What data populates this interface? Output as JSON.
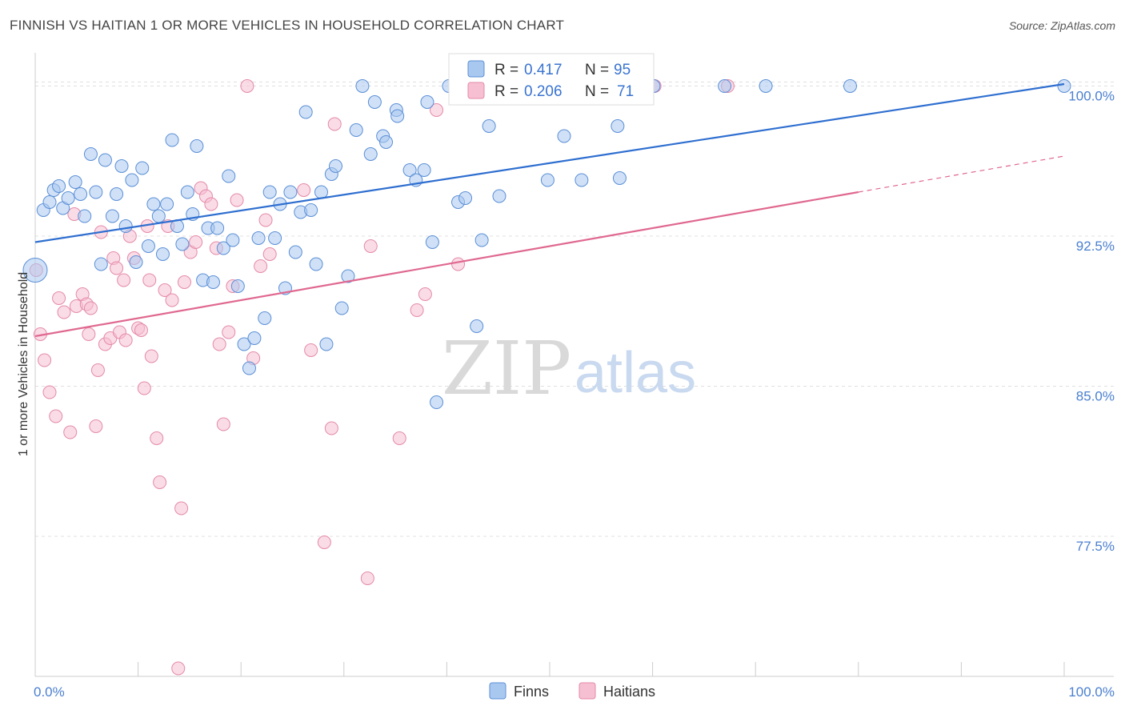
{
  "title": "FINNISH VS HAITIAN 1 OR MORE VEHICLES IN HOUSEHOLD CORRELATION CHART",
  "source": "Source: ZipAtlas.com",
  "watermark": {
    "zip": "ZIP",
    "atlas": "atlas"
  },
  "colors": {
    "finns_fill": "#a9c8f0",
    "finns_stroke": "#5b8fd6",
    "finns_line": "#2f6fd0",
    "haitians_fill": "#f6bfd2",
    "haitians_stroke": "#e48aa9",
    "haitians_line": "#e0688f",
    "grid": "#e0e0e0",
    "axis_label": "#4a7fd0"
  },
  "legend": {
    "rows": [
      {
        "r_label": "R =",
        "r_value": "0.417",
        "n_label": "N =",
        "n_value": "95"
      },
      {
        "r_label": "R =",
        "r_value": "0.206",
        "n_label": "N =",
        "n_value": "71"
      }
    ]
  },
  "chart_data": {
    "type": "scatter",
    "title": "FINNISH VS HAITIAN 1 OR MORE VEHICLES IN HOUSEHOLD CORRELATION CHART",
    "xlabel": "",
    "ylabel": "1 or more Vehicles in Household",
    "xlim": [
      0,
      100
    ],
    "ylim": [
      70.5,
      101.5
    ],
    "x_tick_labels": [
      "0.0%",
      "100.0%"
    ],
    "y_ticks": [
      77.5,
      85.0,
      92.5,
      100.0
    ],
    "y_tick_labels": [
      "77.5%",
      "85.0%",
      "92.5%",
      "100.0%"
    ],
    "grid": true,
    "legend_placement": "bottom",
    "series": [
      {
        "name": "Finns",
        "r": 0.417,
        "n": 95,
        "trend": {
          "x": [
            0,
            100
          ],
          "y": [
            92.2,
            100.1
          ]
        },
        "points": [
          [
            0,
            90.8
          ],
          [
            0.8,
            93.8
          ],
          [
            1.4,
            94.2
          ],
          [
            1.8,
            94.8
          ],
          [
            2.3,
            95.0
          ],
          [
            2.7,
            93.9
          ],
          [
            3.2,
            94.4
          ],
          [
            3.9,
            95.2
          ],
          [
            4.4,
            94.6
          ],
          [
            4.8,
            93.5
          ],
          [
            5.4,
            96.6
          ],
          [
            5.9,
            94.7
          ],
          [
            6.4,
            91.1
          ],
          [
            6.8,
            96.3
          ],
          [
            7.5,
            93.5
          ],
          [
            7.9,
            94.6
          ],
          [
            8.4,
            96.0
          ],
          [
            8.8,
            93.0
          ],
          [
            9.4,
            95.3
          ],
          [
            9.8,
            91.2
          ],
          [
            10.4,
            95.9
          ],
          [
            11.0,
            92.0
          ],
          [
            11.5,
            94.1
          ],
          [
            12.0,
            93.5
          ],
          [
            12.4,
            91.6
          ],
          [
            12.8,
            94.1
          ],
          [
            13.3,
            97.3
          ],
          [
            13.8,
            93.0
          ],
          [
            14.3,
            92.1
          ],
          [
            14.8,
            94.7
          ],
          [
            15.3,
            93.6
          ],
          [
            15.7,
            97.0
          ],
          [
            16.3,
            90.3
          ],
          [
            16.8,
            92.9
          ],
          [
            17.3,
            90.2
          ],
          [
            17.7,
            92.9
          ],
          [
            18.3,
            91.9
          ],
          [
            18.8,
            95.5
          ],
          [
            19.2,
            92.3
          ],
          [
            19.7,
            90.0
          ],
          [
            20.3,
            87.1
          ],
          [
            20.8,
            85.9
          ],
          [
            21.3,
            87.4
          ],
          [
            21.7,
            92.4
          ],
          [
            22.3,
            88.4
          ],
          [
            22.8,
            94.7
          ],
          [
            23.3,
            92.4
          ],
          [
            23.8,
            94.1
          ],
          [
            24.3,
            89.9
          ],
          [
            24.8,
            94.7
          ],
          [
            25.3,
            91.7
          ],
          [
            25.8,
            93.7
          ],
          [
            26.3,
            98.7
          ],
          [
            26.8,
            93.8
          ],
          [
            27.3,
            91.1
          ],
          [
            27.8,
            94.7
          ],
          [
            28.3,
            87.1
          ],
          [
            28.8,
            95.6
          ],
          [
            29.2,
            96.0
          ],
          [
            29.8,
            88.9
          ],
          [
            30.4,
            90.5
          ],
          [
            31.2,
            97.8
          ],
          [
            31.8,
            100.0
          ],
          [
            32.6,
            96.6
          ],
          [
            33.0,
            99.2
          ],
          [
            33.8,
            97.5
          ],
          [
            34.1,
            97.2
          ],
          [
            35.1,
            98.8
          ],
          [
            35.2,
            98.5
          ],
          [
            36.4,
            95.8
          ],
          [
            37.0,
            95.3
          ],
          [
            37.8,
            95.8
          ],
          [
            38.1,
            99.2
          ],
          [
            38.6,
            92.2
          ],
          [
            39.0,
            84.2
          ],
          [
            40.2,
            100.0
          ],
          [
            41.1,
            94.2
          ],
          [
            41.8,
            94.4
          ],
          [
            42.6,
            99.6
          ],
          [
            42.9,
            88.0
          ],
          [
            43.4,
            92.3
          ],
          [
            44.1,
            98.0
          ],
          [
            45.1,
            94.5
          ],
          [
            46.5,
            100.0
          ],
          [
            48.0,
            100.0
          ],
          [
            49.8,
            95.3
          ],
          [
            51.4,
            97.5
          ],
          [
            53.1,
            95.3
          ],
          [
            54.0,
            100.0
          ],
          [
            56.6,
            98.0
          ],
          [
            56.8,
            95.4
          ],
          [
            60.1,
            100.0
          ],
          [
            67.0,
            100.0
          ],
          [
            71.0,
            100.0
          ],
          [
            79.2,
            100.0
          ],
          [
            100.0,
            100.0
          ]
        ]
      },
      {
        "name": "Haitians",
        "r": 0.206,
        "n": 71,
        "trend": {
          "x": [
            0,
            80
          ],
          "y": [
            87.5,
            94.7
          ]
        },
        "trend_extension": {
          "x": [
            80,
            100
          ],
          "y": [
            94.7,
            96.5
          ]
        },
        "points": [
          [
            0.1,
            90.8
          ],
          [
            0.5,
            87.6
          ],
          [
            0.9,
            86.3
          ],
          [
            1.4,
            84.7
          ],
          [
            2.0,
            83.5
          ],
          [
            2.3,
            89.4
          ],
          [
            2.8,
            88.7
          ],
          [
            3.4,
            82.7
          ],
          [
            3.8,
            93.6
          ],
          [
            4.0,
            89.0
          ],
          [
            4.6,
            89.6
          ],
          [
            5.0,
            89.1
          ],
          [
            5.2,
            87.6
          ],
          [
            5.4,
            88.9
          ],
          [
            5.9,
            83.0
          ],
          [
            6.1,
            85.8
          ],
          [
            6.4,
            92.7
          ],
          [
            6.8,
            87.1
          ],
          [
            7.3,
            87.4
          ],
          [
            7.6,
            91.4
          ],
          [
            7.9,
            90.9
          ],
          [
            8.2,
            87.7
          ],
          [
            8.6,
            90.3
          ],
          [
            8.8,
            87.3
          ],
          [
            9.2,
            92.5
          ],
          [
            9.6,
            91.4
          ],
          [
            10.0,
            87.9
          ],
          [
            10.3,
            87.8
          ],
          [
            10.6,
            84.9
          ],
          [
            10.9,
            93.0
          ],
          [
            11.1,
            90.3
          ],
          [
            11.3,
            86.5
          ],
          [
            11.8,
            82.4
          ],
          [
            12.1,
            80.2
          ],
          [
            12.6,
            89.8
          ],
          [
            12.9,
            93.0
          ],
          [
            13.3,
            89.3
          ],
          [
            13.9,
            70.9
          ],
          [
            14.2,
            78.9
          ],
          [
            14.5,
            90.2
          ],
          [
            15.1,
            91.7
          ],
          [
            15.6,
            92.2
          ],
          [
            16.1,
            94.9
          ],
          [
            16.6,
            94.5
          ],
          [
            17.1,
            94.1
          ],
          [
            17.6,
            91.9
          ],
          [
            17.9,
            87.1
          ],
          [
            18.3,
            83.1
          ],
          [
            18.8,
            87.7
          ],
          [
            19.2,
            90.0
          ],
          [
            19.6,
            94.3
          ],
          [
            20.6,
            100.0
          ],
          [
            21.2,
            86.4
          ],
          [
            21.9,
            91.0
          ],
          [
            22.4,
            93.3
          ],
          [
            22.8,
            91.6
          ],
          [
            26.1,
            94.8
          ],
          [
            26.8,
            86.8
          ],
          [
            28.1,
            77.2
          ],
          [
            28.8,
            82.9
          ],
          [
            29.1,
            98.1
          ],
          [
            32.3,
            75.4
          ],
          [
            32.6,
            92.0
          ],
          [
            35.4,
            82.4
          ],
          [
            37.1,
            88.8
          ],
          [
            37.9,
            89.6
          ],
          [
            39.0,
            98.8
          ],
          [
            41.1,
            91.1
          ],
          [
            46.7,
            100.0
          ],
          [
            60.2,
            100.0
          ],
          [
            67.3,
            100.0
          ]
        ]
      }
    ]
  }
}
